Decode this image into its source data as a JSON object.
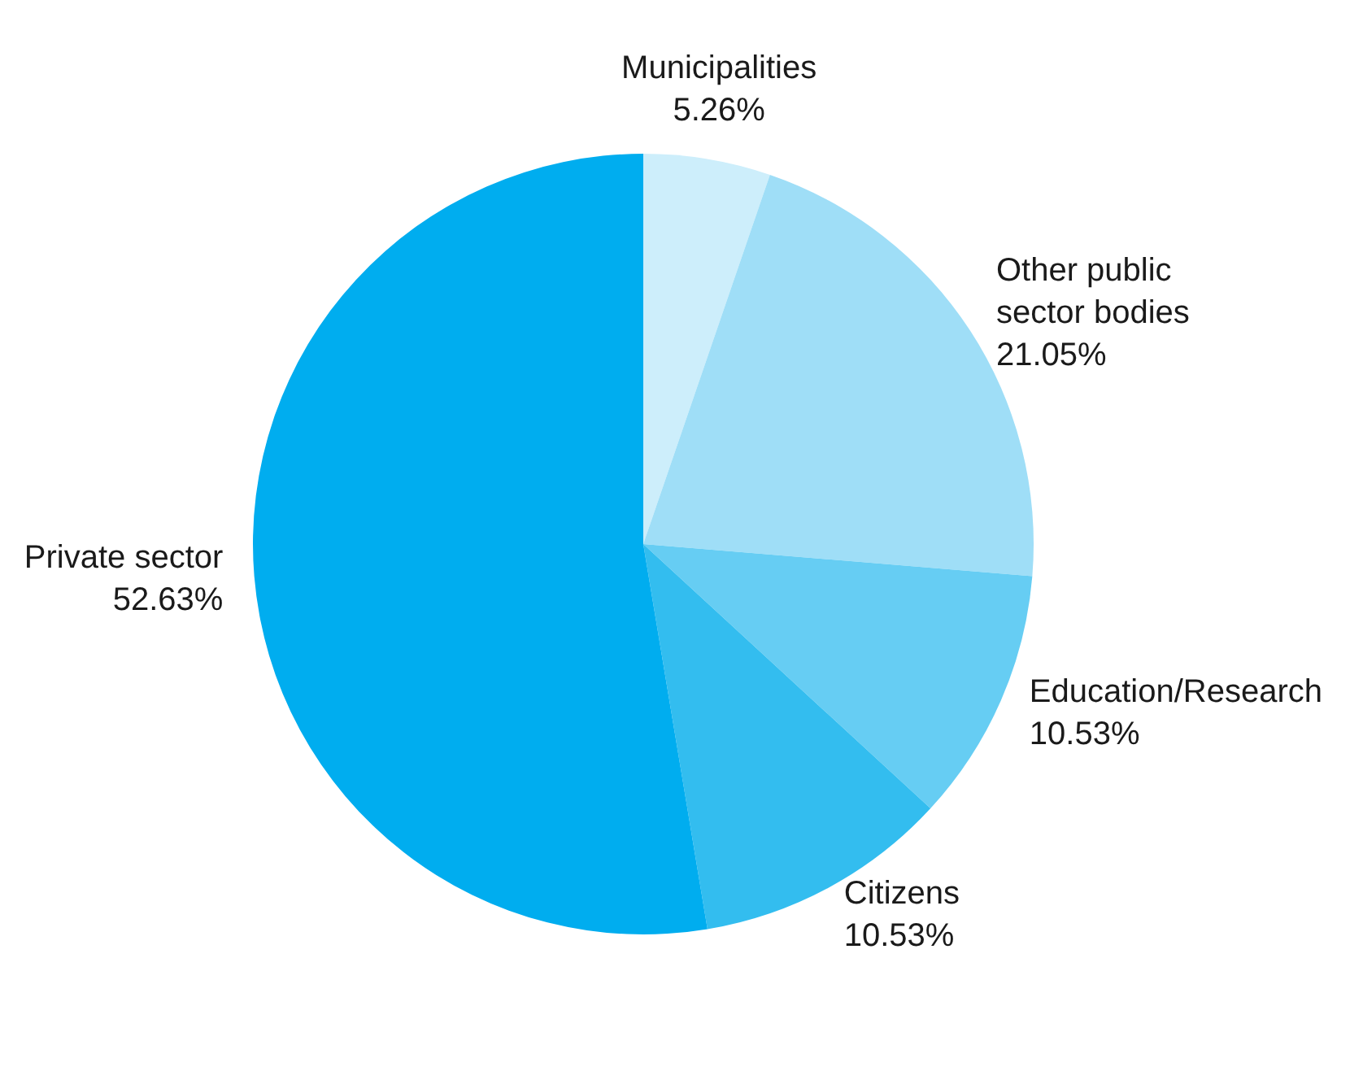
{
  "chart_data": {
    "type": "pie",
    "categories": [
      "Municipalities",
      "Other public sector bodies",
      "Education/Research",
      "Citizens",
      "Private sector"
    ],
    "values": [
      5.26,
      21.05,
      10.53,
      10.53,
      52.63
    ],
    "colors": [
      "#cdeefb",
      "#9fdef7",
      "#66cdf3",
      "#33bdef",
      "#00adef"
    ],
    "value_labels": [
      "5.26%",
      "21.05%",
      "10.53%",
      "10.53%",
      "52.63%"
    ]
  }
}
